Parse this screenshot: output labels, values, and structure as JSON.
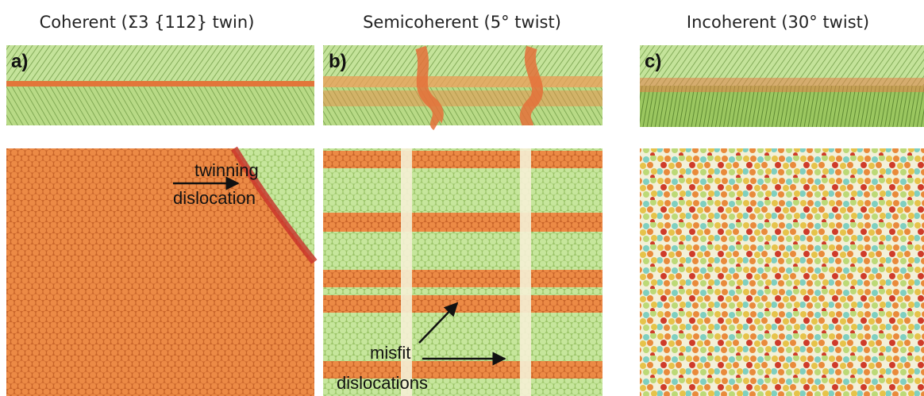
{
  "panels": [
    {
      "title": "Coherent (Σ3 {112} twin)",
      "label": "a)",
      "annotation": [
        "twinning",
        "dislocation"
      ]
    },
    {
      "title": "Semicoherent (5° twist)",
      "label": "b)",
      "annotation": [
        "misfit",
        "dislocations"
      ]
    },
    {
      "title": "Incoherent (30° twist)",
      "label": "c)"
    }
  ]
}
